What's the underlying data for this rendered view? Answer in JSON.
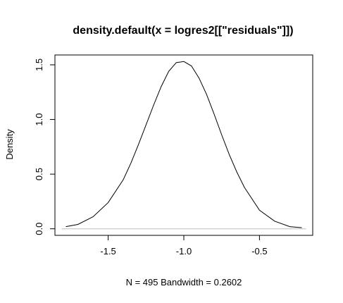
{
  "chart_data": {
    "type": "line",
    "title": "density.default(x = logres2[[\"residuals\"]])",
    "xlabel": "N = 495   Bandwidth = 0.2602",
    "ylabel": "Density",
    "xlim": [
      -1.852,
      -0.148
    ],
    "ylim": [
      -0.06,
      1.59
    ],
    "x_ticks": [
      -1.5,
      -1.0,
      -0.5
    ],
    "x_tick_labels": [
      "-1.5",
      "-1.0",
      "-0.5"
    ],
    "y_ticks": [
      0.0,
      0.5,
      1.0,
      1.5
    ],
    "y_tick_labels": [
      "0.0",
      "0.5",
      "1.0",
      "1.5"
    ],
    "grid": false,
    "baseline": 0,
    "series": [
      {
        "x": [
          -1.78,
          -1.7,
          -1.6,
          -1.5,
          -1.4,
          -1.35,
          -1.3,
          -1.25,
          -1.2,
          -1.15,
          -1.1,
          -1.05,
          -1.0,
          -0.95,
          -0.9,
          -0.85,
          -0.8,
          -0.75,
          -0.7,
          -0.65,
          -0.6,
          -0.5,
          -0.4,
          -0.3,
          -0.22
        ],
        "y": [
          0.02,
          0.04,
          0.11,
          0.24,
          0.45,
          0.6,
          0.77,
          0.95,
          1.13,
          1.3,
          1.44,
          1.52,
          1.53,
          1.49,
          1.38,
          1.23,
          1.05,
          0.86,
          0.68,
          0.52,
          0.38,
          0.17,
          0.07,
          0.02,
          0.01
        ]
      }
    ],
    "colors": {
      "line": "#000000",
      "baseline": "#bebebe",
      "axis": "#000000"
    }
  }
}
